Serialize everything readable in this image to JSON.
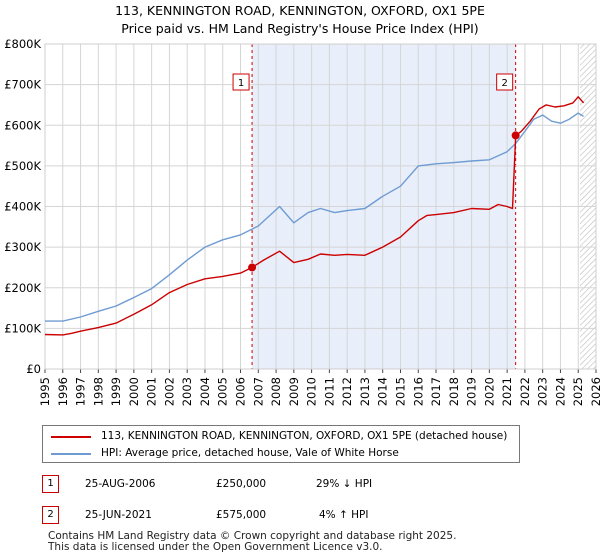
{
  "title_line1": "113, KENNINGTON ROAD, KENNINGTON, OXFORD, OX1 5PE",
  "title_line2": "Price paid vs. HM Land Registry's House Price Index (HPI)",
  "colors": {
    "price": "#cc0000",
    "hpi": "#6e9bd2",
    "shade": "#e8eefa",
    "grid": "#d5d5d5"
  },
  "chart_data": {
    "type": "line",
    "ylim": [
      0,
      800000
    ],
    "xlim": [
      1995,
      2026
    ],
    "y_ticks": [
      "£0",
      "£100K",
      "£200K",
      "£300K",
      "£400K",
      "£500K",
      "£600K",
      "£700K",
      "£800K"
    ],
    "x_ticks": [
      "1995",
      "1996",
      "1997",
      "1998",
      "1999",
      "2000",
      "2001",
      "2002",
      "2003",
      "2004",
      "2005",
      "2006",
      "2007",
      "2008",
      "2009",
      "2010",
      "2011",
      "2012",
      "2013",
      "2014",
      "2015",
      "2016",
      "2017",
      "2018",
      "2019",
      "2020",
      "2021",
      "2022",
      "2023",
      "2024",
      "2025",
      "2026"
    ],
    "shaded_range": [
      2006.65,
      2021.48
    ],
    "future_hatch_from": 2025.1,
    "series": [
      {
        "name": "113, KENNINGTON ROAD, KENNINGTON, OXFORD, OX1 5PE (detached house)",
        "points": [
          [
            1995.0,
            85000
          ],
          [
            1996.0,
            84000
          ],
          [
            1996.5,
            88000
          ],
          [
            1997.0,
            93000
          ],
          [
            1998.0,
            102000
          ],
          [
            1999.0,
            113000
          ],
          [
            2000.0,
            135000
          ],
          [
            2001.0,
            158000
          ],
          [
            2002.0,
            188000
          ],
          [
            2003.0,
            208000
          ],
          [
            2004.0,
            222000
          ],
          [
            2005.0,
            228000
          ],
          [
            2006.0,
            236000
          ],
          [
            2006.65,
            250000
          ],
          [
            2007.3,
            268000
          ],
          [
            2008.2,
            290000
          ],
          [
            2009.0,
            262000
          ],
          [
            2009.8,
            270000
          ],
          [
            2010.5,
            283000
          ],
          [
            2011.3,
            280000
          ],
          [
            2012.0,
            282000
          ],
          [
            2013.0,
            280000
          ],
          [
            2014.0,
            300000
          ],
          [
            2015.0,
            325000
          ],
          [
            2016.0,
            365000
          ],
          [
            2016.5,
            378000
          ],
          [
            2017.0,
            380000
          ],
          [
            2018.0,
            385000
          ],
          [
            2019.0,
            395000
          ],
          [
            2020.0,
            393000
          ],
          [
            2020.5,
            405000
          ],
          [
            2021.0,
            400000
          ],
          [
            2021.3,
            395000
          ],
          [
            2021.48,
            575000
          ],
          [
            2021.8,
            585000
          ],
          [
            2022.3,
            610000
          ],
          [
            2022.8,
            640000
          ],
          [
            2023.2,
            650000
          ],
          [
            2023.7,
            645000
          ],
          [
            2024.2,
            648000
          ],
          [
            2024.7,
            655000
          ],
          [
            2025.0,
            670000
          ],
          [
            2025.3,
            655000
          ]
        ]
      },
      {
        "name": "HPI: Average price, detached house, Vale of White Horse",
        "points": [
          [
            1995.0,
            118000
          ],
          [
            1996.0,
            118000
          ],
          [
            1997.0,
            128000
          ],
          [
            1998.0,
            142000
          ],
          [
            1999.0,
            155000
          ],
          [
            2000.0,
            176000
          ],
          [
            2001.0,
            198000
          ],
          [
            2002.0,
            232000
          ],
          [
            2003.0,
            268000
          ],
          [
            2004.0,
            300000
          ],
          [
            2005.0,
            318000
          ],
          [
            2006.0,
            330000
          ],
          [
            2007.0,
            352000
          ],
          [
            2008.2,
            400000
          ],
          [
            2009.0,
            360000
          ],
          [
            2009.8,
            385000
          ],
          [
            2010.5,
            395000
          ],
          [
            2011.3,
            385000
          ],
          [
            2012.0,
            390000
          ],
          [
            2013.0,
            395000
          ],
          [
            2014.0,
            425000
          ],
          [
            2015.0,
            450000
          ],
          [
            2016.0,
            500000
          ],
          [
            2017.0,
            505000
          ],
          [
            2018.0,
            508000
          ],
          [
            2019.0,
            512000
          ],
          [
            2020.0,
            515000
          ],
          [
            2021.0,
            535000
          ],
          [
            2021.48,
            555000
          ],
          [
            2022.0,
            585000
          ],
          [
            2022.5,
            615000
          ],
          [
            2023.0,
            625000
          ],
          [
            2023.5,
            610000
          ],
          [
            2024.0,
            605000
          ],
          [
            2024.5,
            615000
          ],
          [
            2025.0,
            630000
          ],
          [
            2025.3,
            622000
          ]
        ]
      }
    ],
    "markers": [
      {
        "label": "1",
        "x": 2006.65,
        "y": 250000
      },
      {
        "label": "2",
        "x": 2021.48,
        "y": 575000
      }
    ]
  },
  "legend": {
    "price_label": "113, KENNINGTON ROAD, KENNINGTON, OXFORD, OX1 5PE (detached house)",
    "hpi_label": "HPI: Average price, detached house, Vale of White Horse"
  },
  "transactions": [
    {
      "num": "1",
      "date": "25-AUG-2006",
      "price": "£250,000",
      "delta": "29% ↓ HPI"
    },
    {
      "num": "2",
      "date": "25-JUN-2021",
      "price": "£575,000",
      "delta": "4% ↑ HPI"
    }
  ],
  "footer_line1": "Contains HM Land Registry data © Crown copyright and database right 2025.",
  "footer_line2": "This data is licensed under the Open Government Licence v3.0."
}
